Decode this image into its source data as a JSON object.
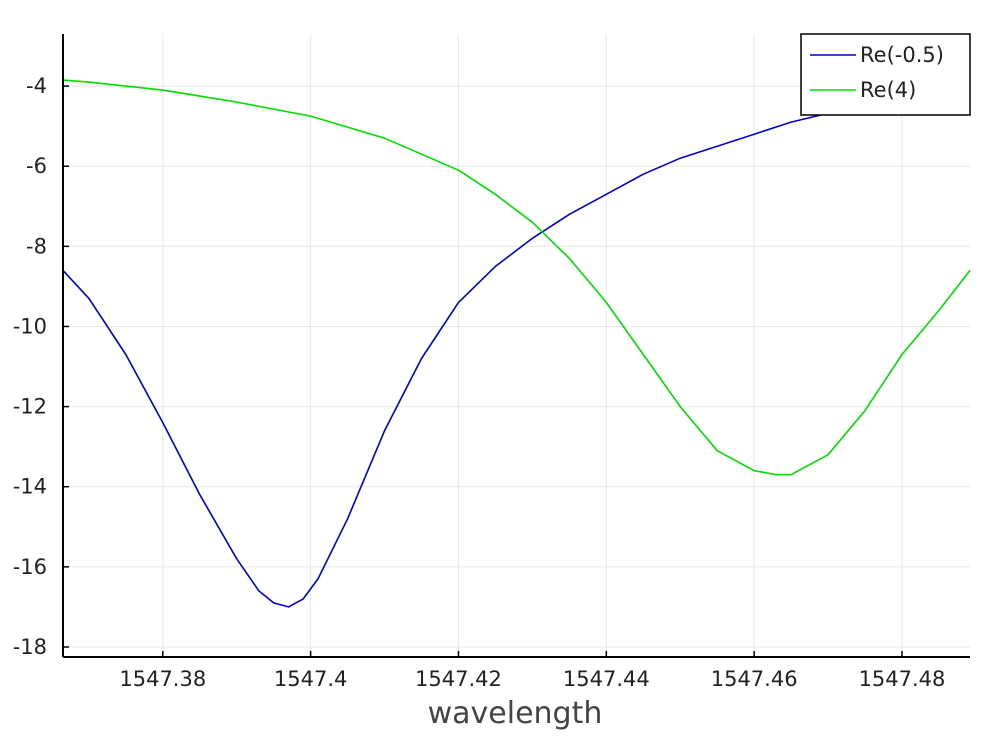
{
  "chart_data": {
    "type": "line",
    "title": "",
    "xlabel": "wavelength",
    "ylabel": "",
    "xlim": [
      1547.3665,
      1547.4892
    ],
    "ylim": [
      -18.25,
      -2.7
    ],
    "grid": true,
    "legend_position": "top-right",
    "x_ticks": [
      1547.38,
      1547.4,
      1547.42,
      1547.44,
      1547.46,
      1547.48
    ],
    "x_tick_labels": [
      "1547.38",
      "1547.4",
      "1547.42",
      "1547.44",
      "1547.46",
      "1547.48"
    ],
    "y_ticks": [
      -4,
      -6,
      -8,
      -10,
      -12,
      -14,
      -16,
      -18
    ],
    "y_tick_labels": [
      "-4",
      "-6",
      "-8",
      "-10",
      "-12",
      "-14",
      "-16",
      "-18"
    ],
    "series": [
      {
        "name": "Re(-0.5)",
        "color": "#0000cc",
        "x": [
          1547.3665,
          1547.37,
          1547.375,
          1547.38,
          1547.385,
          1547.39,
          1547.393,
          1547.395,
          1547.397,
          1547.399,
          1547.401,
          1547.405,
          1547.41,
          1547.415,
          1547.42,
          1547.425,
          1547.43,
          1547.435,
          1547.44,
          1547.445,
          1547.45,
          1547.455,
          1547.46,
          1547.465,
          1547.4695
        ],
        "y": [
          -8.6,
          -9.3,
          -10.7,
          -12.4,
          -14.2,
          -15.8,
          -16.6,
          -16.9,
          -17.0,
          -16.8,
          -16.3,
          -14.8,
          -12.6,
          -10.8,
          -9.4,
          -8.5,
          -7.8,
          -7.2,
          -6.7,
          -6.2,
          -5.8,
          -5.5,
          -5.2,
          -4.9,
          -4.7
        ]
      },
      {
        "name": "Re(4)",
        "color": "#00dd00",
        "x": [
          1547.3665,
          1547.37,
          1547.38,
          1547.39,
          1547.4,
          1547.41,
          1547.42,
          1547.425,
          1547.43,
          1547.435,
          1547.44,
          1547.445,
          1547.45,
          1547.455,
          1547.46,
          1547.463,
          1547.465,
          1547.47,
          1547.475,
          1547.48,
          1547.485,
          1547.4892
        ],
        "y": [
          -3.85,
          -3.9,
          -4.1,
          -4.4,
          -4.75,
          -5.3,
          -6.1,
          -6.7,
          -7.4,
          -8.3,
          -9.4,
          -10.7,
          -12.0,
          -13.1,
          -13.6,
          -13.7,
          -13.7,
          -13.2,
          -12.1,
          -10.7,
          -9.6,
          -8.6
        ]
      }
    ]
  }
}
